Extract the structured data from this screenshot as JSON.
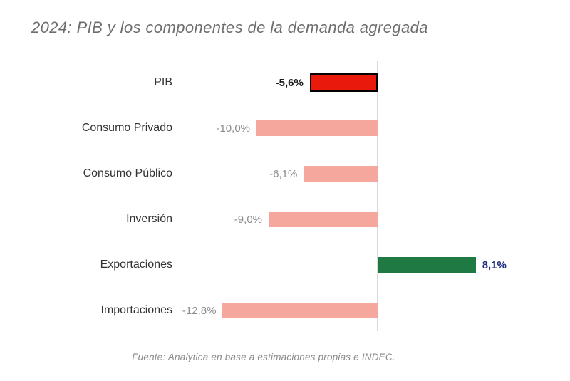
{
  "chart_data": {
    "type": "bar",
    "orientation": "horizontal",
    "title": "2024: PIB y los componentes de la demanda agregada",
    "source": "Fuente: Analytica en base a estimaciones propias e INDEC.",
    "xlim": [
      -14,
      9
    ],
    "unit": "%",
    "grid": false,
    "legend": "none",
    "colors": {
      "highlight_bar": "#e91a0c",
      "highlight_border": "#000000",
      "negative_bar": "#f5a69d",
      "positive_bar": "#1e7a42",
      "value_default": "#8c8c8c",
      "value_highlight": "#1a1a1a",
      "value_positive": "#1b2a80",
      "axis_line": "#d9d9d9"
    },
    "bars": [
      {
        "category": "PIB",
        "value": -5.6,
        "label": "-5,6%",
        "color": "#e91a0c",
        "border": "#000000",
        "label_color": "#1a1a1a",
        "label_bold": true
      },
      {
        "category": "Consumo Privado",
        "value": -10.0,
        "label": "-10,0%",
        "color": "#f5a69d",
        "label_color": "#8c8c8c",
        "label_bold": false
      },
      {
        "category": "Consumo Público",
        "value": -6.1,
        "label": "-6,1%",
        "color": "#f5a69d",
        "label_color": "#8c8c8c",
        "label_bold": false
      },
      {
        "category": "Inversión",
        "value": -9.0,
        "label": "-9,0%",
        "color": "#f5a69d",
        "label_color": "#8c8c8c",
        "label_bold": false
      },
      {
        "category": "Exportaciones",
        "value": 8.1,
        "label": "8,1%",
        "color": "#1e7a42",
        "label_color": "#1b2a80",
        "label_bold": true
      },
      {
        "category": "Importaciones",
        "value": -12.8,
        "label": "-12,8%",
        "color": "#f5a69d",
        "label_color": "#8c8c8c",
        "label_bold": false
      }
    ]
  }
}
